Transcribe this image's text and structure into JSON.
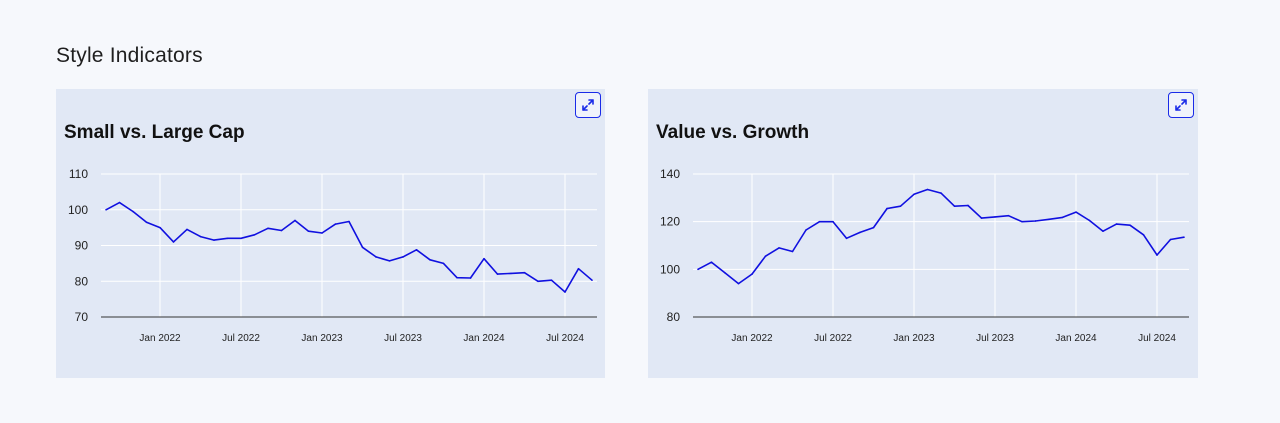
{
  "section": {
    "title": "Style Indicators"
  },
  "colors": {
    "line": "#1010e0",
    "grid": "#ffffff",
    "card_bg": "#e1e8f5",
    "page_bg": "#f6f8fc",
    "accent": "#1a2be8"
  },
  "icons": {
    "expand": "expand-icon"
  },
  "chart_data": [
    {
      "type": "line",
      "title": "Small vs. Large Cap",
      "xlabel": "",
      "ylabel": "",
      "ylim": [
        70,
        110
      ],
      "yticks": [
        70,
        80,
        90,
        100,
        110
      ],
      "xlim": [
        "2021-09-01",
        "2024-09-01"
      ],
      "xticks": [
        {
          "label": "Jan 2022",
          "date": "2022-01-01"
        },
        {
          "label": "Jul 2022",
          "date": "2022-07-01"
        },
        {
          "label": "Jan 2023",
          "date": "2023-01-01"
        },
        {
          "label": "Jul 2023",
          "date": "2023-07-01"
        },
        {
          "label": "Jan 2024",
          "date": "2024-01-01"
        },
        {
          "label": "Jul 2024",
          "date": "2024-07-01"
        }
      ],
      "grid": true,
      "series": [
        {
          "points": [
            [
              "2021-09-01",
              100
            ],
            [
              "2021-10-01",
              102
            ],
            [
              "2021-11-01",
              99.5
            ],
            [
              "2021-12-01",
              96.5
            ],
            [
              "2022-01-01",
              95
            ],
            [
              "2022-02-01",
              91
            ],
            [
              "2022-03-01",
              94.5
            ],
            [
              "2022-04-01",
              92.5
            ],
            [
              "2022-05-01",
              91.5
            ],
            [
              "2022-06-01",
              92
            ],
            [
              "2022-07-01",
              92
            ],
            [
              "2022-08-01",
              93
            ],
            [
              "2022-09-01",
              94.8
            ],
            [
              "2022-10-01",
              94.2
            ],
            [
              "2022-11-01",
              97
            ],
            [
              "2022-12-01",
              94
            ],
            [
              "2023-01-01",
              93.5
            ],
            [
              "2023-02-01",
              96
            ],
            [
              "2023-03-01",
              96.7
            ],
            [
              "2023-04-01",
              89.5
            ],
            [
              "2023-05-01",
              86.8
            ],
            [
              "2023-06-01",
              85.7
            ],
            [
              "2023-07-01",
              86.8
            ],
            [
              "2023-08-01",
              88.8
            ],
            [
              "2023-09-01",
              86
            ],
            [
              "2023-10-01",
              85
            ],
            [
              "2023-11-01",
              81
            ],
            [
              "2023-12-01",
              80.9
            ],
            [
              "2024-01-01",
              86.3
            ],
            [
              "2024-02-01",
              82
            ],
            [
              "2024-03-01",
              82.2
            ],
            [
              "2024-04-01",
              82.4
            ],
            [
              "2024-05-01",
              80
            ],
            [
              "2024-06-01",
              80.3
            ],
            [
              "2024-07-01",
              77
            ],
            [
              "2024-08-01",
              83.5
            ],
            [
              "2024-09-01",
              80.3
            ]
          ]
        }
      ]
    },
    {
      "type": "line",
      "title": "Value vs. Growth",
      "xlabel": "",
      "ylabel": "",
      "ylim": [
        80,
        140
      ],
      "yticks": [
        80,
        100,
        120,
        140
      ],
      "xlim": [
        "2021-09-01",
        "2024-09-01"
      ],
      "xticks": [
        {
          "label": "Jan 2022",
          "date": "2022-01-01"
        },
        {
          "label": "Jul 2022",
          "date": "2022-07-01"
        },
        {
          "label": "Jan 2023",
          "date": "2023-01-01"
        },
        {
          "label": "Jul 2023",
          "date": "2023-07-01"
        },
        {
          "label": "Jan 2024",
          "date": "2024-01-01"
        },
        {
          "label": "Jul 2024",
          "date": "2024-07-01"
        }
      ],
      "grid": true,
      "series": [
        {
          "points": [
            [
              "2021-09-01",
              100
            ],
            [
              "2021-10-01",
              103
            ],
            [
              "2021-11-01",
              98.5
            ],
            [
              "2021-12-01",
              94
            ],
            [
              "2022-01-01",
              98
            ],
            [
              "2022-02-01",
              105.5
            ],
            [
              "2022-03-01",
              109
            ],
            [
              "2022-04-01",
              107.5
            ],
            [
              "2022-05-01",
              116.5
            ],
            [
              "2022-06-01",
              120
            ],
            [
              "2022-07-01",
              120
            ],
            [
              "2022-08-01",
              113
            ],
            [
              "2022-09-01",
              115.5
            ],
            [
              "2022-10-01",
              117.5
            ],
            [
              "2022-11-01",
              125.5
            ],
            [
              "2022-12-01",
              126.5
            ],
            [
              "2023-01-01",
              131.5
            ],
            [
              "2023-02-01",
              133.5
            ],
            [
              "2023-03-01",
              132
            ],
            [
              "2023-04-01",
              126.5
            ],
            [
              "2023-05-01",
              126.8
            ],
            [
              "2023-06-01",
              121.5
            ],
            [
              "2023-07-01",
              122
            ],
            [
              "2023-08-01",
              122.5
            ],
            [
              "2023-09-01",
              120
            ],
            [
              "2023-10-01",
              120.3
            ],
            [
              "2023-11-01",
              121
            ],
            [
              "2023-12-01",
              121.8
            ],
            [
              "2024-01-01",
              124
            ],
            [
              "2024-02-01",
              120.5
            ],
            [
              "2024-03-01",
              116
            ],
            [
              "2024-04-01",
              119
            ],
            [
              "2024-05-01",
              118.5
            ],
            [
              "2024-06-01",
              114.5
            ],
            [
              "2024-07-01",
              106
            ],
            [
              "2024-08-01",
              112.5
            ],
            [
              "2024-09-01",
              113.5
            ]
          ]
        }
      ]
    }
  ]
}
